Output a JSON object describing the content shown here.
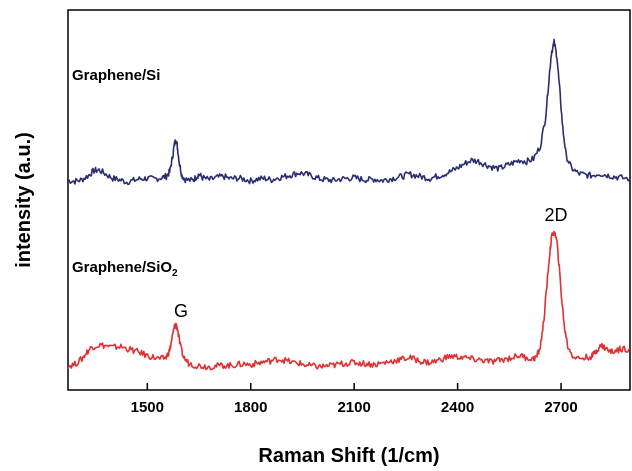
{
  "chart_data": {
    "type": "line",
    "xlabel": "Raman Shift (1/cm)",
    "ylabel": "intensity (a.u.)",
    "xlim": [
      1270,
      2900
    ],
    "ylim": [
      0,
      1
    ],
    "x_ticks": [
      1500,
      1800,
      2100,
      2400,
      2700
    ],
    "y_ticks_labeled": false,
    "grid": false,
    "annotations": [
      {
        "text": "G",
        "x": 1583,
        "y": 0.2
      },
      {
        "text": "2D",
        "x": 2680,
        "y": 0.46
      }
    ],
    "series": [
      {
        "label_text": "Graphene/Si",
        "color": "#2b2d72",
        "points": [
          [
            1270,
            0.57
          ],
          [
            1290,
            0.568
          ],
          [
            1310,
            0.572
          ],
          [
            1330,
            0.585
          ],
          [
            1345,
            0.598
          ],
          [
            1360,
            0.6
          ],
          [
            1380,
            0.588
          ],
          [
            1400,
            0.576
          ],
          [
            1420,
            0.572
          ],
          [
            1440,
            0.566
          ],
          [
            1460,
            0.57
          ],
          [
            1480,
            0.575
          ],
          [
            1500,
            0.576
          ],
          [
            1520,
            0.574
          ],
          [
            1540,
            0.578
          ],
          [
            1555,
            0.582
          ],
          [
            1565,
            0.595
          ],
          [
            1572,
            0.63
          ],
          [
            1578,
            0.67
          ],
          [
            1583,
            0.69
          ],
          [
            1588,
            0.66
          ],
          [
            1593,
            0.62
          ],
          [
            1600,
            0.585
          ],
          [
            1610,
            0.573
          ],
          [
            1630,
            0.57
          ],
          [
            1640,
            0.578
          ],
          [
            1650,
            0.588
          ],
          [
            1660,
            0.578
          ],
          [
            1680,
            0.572
          ],
          [
            1700,
            0.578
          ],
          [
            1720,
            0.582
          ],
          [
            1740,
            0.575
          ],
          [
            1760,
            0.577
          ],
          [
            1780,
            0.574
          ],
          [
            1800,
            0.569
          ],
          [
            1820,
            0.574
          ],
          [
            1840,
            0.576
          ],
          [
            1860,
            0.572
          ],
          [
            1880,
            0.578
          ],
          [
            1900,
            0.582
          ],
          [
            1920,
            0.587
          ],
          [
            1940,
            0.592
          ],
          [
            1960,
            0.588
          ],
          [
            1980,
            0.582
          ],
          [
            2000,
            0.575
          ],
          [
            2020,
            0.572
          ],
          [
            2040,
            0.57
          ],
          [
            2060,
            0.574
          ],
          [
            2080,
            0.576
          ],
          [
            2100,
            0.578
          ],
          [
            2120,
            0.574
          ],
          [
            2140,
            0.572
          ],
          [
            2160,
            0.574
          ],
          [
            2180,
            0.57
          ],
          [
            2200,
            0.574
          ],
          [
            2220,
            0.578
          ],
          [
            2240,
            0.582
          ],
          [
            2260,
            0.588
          ],
          [
            2280,
            0.584
          ],
          [
            2300,
            0.58
          ],
          [
            2320,
            0.576
          ],
          [
            2340,
            0.582
          ],
          [
            2360,
            0.588
          ],
          [
            2380,
            0.596
          ],
          [
            2400,
            0.606
          ],
          [
            2420,
            0.618
          ],
          [
            2440,
            0.628
          ],
          [
            2460,
            0.625
          ],
          [
            2480,
            0.616
          ],
          [
            2500,
            0.608
          ],
          [
            2520,
            0.604
          ],
          [
            2540,
            0.612
          ],
          [
            2560,
            0.62
          ],
          [
            2580,
            0.628
          ],
          [
            2600,
            0.624
          ],
          [
            2620,
            0.632
          ],
          [
            2640,
            0.668
          ],
          [
            2655,
            0.75
          ],
          [
            2665,
            0.86
          ],
          [
            2672,
            0.935
          ],
          [
            2680,
            0.965
          ],
          [
            2688,
            0.925
          ],
          [
            2696,
            0.83
          ],
          [
            2705,
            0.72
          ],
          [
            2715,
            0.64
          ],
          [
            2730,
            0.606
          ],
          [
            2750,
            0.59
          ],
          [
            2770,
            0.586
          ],
          [
            2790,
            0.584
          ],
          [
            2810,
            0.59
          ],
          [
            2830,
            0.586
          ],
          [
            2850,
            0.582
          ],
          [
            2870,
            0.578
          ],
          [
            2900,
            0.575
          ]
        ]
      },
      {
        "label_text": "Graphene/SiO",
        "label_subscript": "2",
        "color": "#e03030",
        "points": [
          [
            1270,
            0.04
          ],
          [
            1290,
            0.045
          ],
          [
            1310,
            0.06
          ],
          [
            1325,
            0.08
          ],
          [
            1340,
            0.095
          ],
          [
            1360,
            0.1
          ],
          [
            1380,
            0.098
          ],
          [
            1400,
            0.093
          ],
          [
            1420,
            0.096
          ],
          [
            1440,
            0.09
          ],
          [
            1460,
            0.084
          ],
          [
            1480,
            0.078
          ],
          [
            1500,
            0.07
          ],
          [
            1520,
            0.064
          ],
          [
            1540,
            0.06
          ],
          [
            1555,
            0.065
          ],
          [
            1565,
            0.085
          ],
          [
            1572,
            0.12
          ],
          [
            1578,
            0.15
          ],
          [
            1583,
            0.16
          ],
          [
            1588,
            0.145
          ],
          [
            1595,
            0.1
          ],
          [
            1605,
            0.065
          ],
          [
            1620,
            0.048
          ],
          [
            1640,
            0.042
          ],
          [
            1660,
            0.04
          ],
          [
            1680,
            0.038
          ],
          [
            1700,
            0.04
          ],
          [
            1720,
            0.042
          ],
          [
            1740,
            0.041
          ],
          [
            1760,
            0.044
          ],
          [
            1780,
            0.046
          ],
          [
            1800,
            0.044
          ],
          [
            1820,
            0.048
          ],
          [
            1840,
            0.052
          ],
          [
            1860,
            0.055
          ],
          [
            1880,
            0.06
          ],
          [
            1900,
            0.056
          ],
          [
            1920,
            0.05
          ],
          [
            1940,
            0.048
          ],
          [
            1960,
            0.042
          ],
          [
            1980,
            0.04
          ],
          [
            2000,
            0.038
          ],
          [
            2020,
            0.04
          ],
          [
            2040,
            0.042
          ],
          [
            2060,
            0.046
          ],
          [
            2080,
            0.048
          ],
          [
            2100,
            0.05
          ],
          [
            2120,
            0.048
          ],
          [
            2140,
            0.046
          ],
          [
            2160,
            0.044
          ],
          [
            2180,
            0.048
          ],
          [
            2200,
            0.052
          ],
          [
            2220,
            0.056
          ],
          [
            2240,
            0.06
          ],
          [
            2260,
            0.064
          ],
          [
            2280,
            0.058
          ],
          [
            2300,
            0.052
          ],
          [
            2320,
            0.05
          ],
          [
            2340,
            0.055
          ],
          [
            2360,
            0.062
          ],
          [
            2380,
            0.068
          ],
          [
            2400,
            0.066
          ],
          [
            2420,
            0.064
          ],
          [
            2440,
            0.06
          ],
          [
            2460,
            0.058
          ],
          [
            2480,
            0.055
          ],
          [
            2500,
            0.052
          ],
          [
            2520,
            0.056
          ],
          [
            2540,
            0.06
          ],
          [
            2560,
            0.065
          ],
          [
            2580,
            0.07
          ],
          [
            2600,
            0.064
          ],
          [
            2620,
            0.06
          ],
          [
            2630,
            0.068
          ],
          [
            2640,
            0.095
          ],
          [
            2650,
            0.17
          ],
          [
            2658,
            0.26
          ],
          [
            2665,
            0.34
          ],
          [
            2672,
            0.405
          ],
          [
            2680,
            0.425
          ],
          [
            2688,
            0.395
          ],
          [
            2695,
            0.32
          ],
          [
            2702,
            0.23
          ],
          [
            2710,
            0.15
          ],
          [
            2720,
            0.095
          ],
          [
            2735,
            0.068
          ],
          [
            2750,
            0.062
          ],
          [
            2770,
            0.064
          ],
          [
            2790,
            0.068
          ],
          [
            2800,
            0.08
          ],
          [
            2810,
            0.094
          ],
          [
            2820,
            0.098
          ],
          [
            2830,
            0.09
          ],
          [
            2845,
            0.08
          ],
          [
            2860,
            0.085
          ],
          [
            2880,
            0.09
          ],
          [
            2900,
            0.088
          ]
        ]
      }
    ]
  }
}
